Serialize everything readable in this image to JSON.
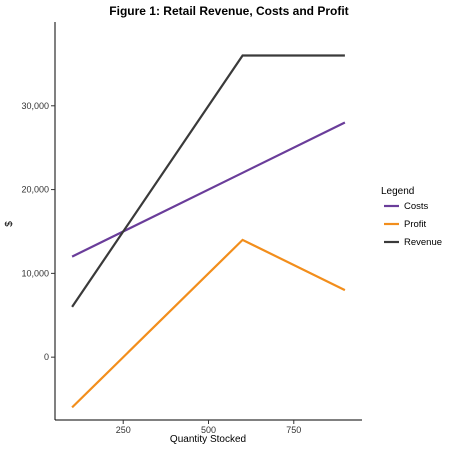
{
  "chart_data": {
    "type": "line",
    "title": "Figure 1: Retail Revenue, Costs and Profit",
    "xlabel": "Quantity Stocked",
    "ylabel": "$",
    "x": [
      100,
      600,
      900
    ],
    "xlim": [
      50,
      950
    ],
    "ylim": [
      -7500,
      40000
    ],
    "xticks": [
      250,
      500,
      750
    ],
    "xtick_labels": [
      "250",
      "500",
      "750"
    ],
    "yticks": [
      0,
      10000,
      20000,
      30000
    ],
    "ytick_labels": [
      "0",
      "10,000",
      "20,000",
      "30,000"
    ],
    "grid": false,
    "legend": {
      "title": "Legend",
      "placement": "right"
    },
    "series": [
      {
        "name": "Costs",
        "color": "#6a3d9a",
        "values": [
          12000,
          22000,
          28000
        ]
      },
      {
        "name": "Profit",
        "color": "#f28e1c",
        "values": [
          -6000,
          14000,
          8000
        ]
      },
      {
        "name": "Revenue",
        "color": "#3a3a3a",
        "values": [
          6000,
          36000,
          36000
        ]
      }
    ]
  }
}
